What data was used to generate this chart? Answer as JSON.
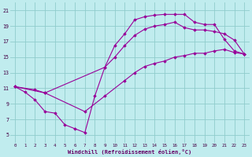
{
  "bg_color": "#c0ecee",
  "grid_color": "#90cccc",
  "line_color": "#990099",
  "xlabel": "Windchill (Refroidissement éolien,°C)",
  "xlim": [
    -0.5,
    23.5
  ],
  "ylim": [
    4.0,
    22.0
  ],
  "xticks": [
    0,
    1,
    2,
    3,
    4,
    5,
    6,
    7,
    8,
    9,
    10,
    11,
    12,
    13,
    14,
    15,
    16,
    17,
    18,
    19,
    20,
    21,
    22,
    23
  ],
  "yticks": [
    5,
    7,
    9,
    11,
    13,
    15,
    17,
    19,
    21
  ],
  "line1_x": [
    0,
    1,
    2,
    3,
    4,
    5,
    6,
    7,
    8,
    9,
    10,
    11,
    12,
    13,
    14,
    15,
    16,
    17,
    18,
    19,
    20,
    21,
    22,
    23
  ],
  "line1_y": [
    11.2,
    10.5,
    9.5,
    8.0,
    7.8,
    6.3,
    5.8,
    5.3,
    10.0,
    13.7,
    16.5,
    18.0,
    19.8,
    20.2,
    20.4,
    20.5,
    20.5,
    20.5,
    19.5,
    19.2,
    19.2,
    17.3,
    15.8,
    15.4
  ],
  "line2_x": [
    0,
    2,
    3,
    9,
    10,
    11,
    12,
    13,
    14,
    15,
    16,
    17,
    18,
    19,
    20,
    21,
    22,
    23
  ],
  "line2_y": [
    11.2,
    10.8,
    10.4,
    13.7,
    15.0,
    16.5,
    17.8,
    18.6,
    19.0,
    19.2,
    19.5,
    18.8,
    18.5,
    18.5,
    18.3,
    18.0,
    17.2,
    15.4
  ],
  "line3_x": [
    0,
    3,
    7,
    9,
    11,
    12,
    13,
    14,
    15,
    16,
    17,
    18,
    19,
    20,
    21,
    22,
    23
  ],
  "line3_y": [
    11.2,
    10.4,
    8.0,
    10.0,
    12.0,
    13.0,
    13.8,
    14.2,
    14.5,
    15.0,
    15.2,
    15.5,
    15.5,
    15.8,
    16.0,
    15.6,
    15.4
  ]
}
